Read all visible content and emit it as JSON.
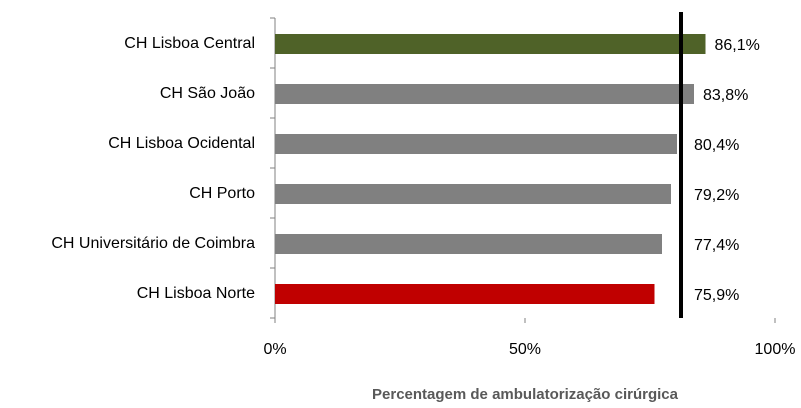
{
  "chart_data": {
    "type": "bar",
    "orientation": "horizontal",
    "x_label": "Percentagem de ambulatorização cirúrgica",
    "categories": [
      "CH Lisboa Central",
      "CH São João",
      "CH Lisboa Ocidental",
      "CH Porto",
      "CH Universitário de Coimbra",
      "CH Lisboa Norte"
    ],
    "values": [
      86.1,
      83.8,
      80.4,
      79.2,
      77.4,
      75.9
    ],
    "value_labels": [
      "86,1%",
      "83,8%",
      "80,4%",
      "79,2%",
      "77,4%",
      "75,9%"
    ],
    "colors": [
      "#4f6228",
      "#808080",
      "#808080",
      "#808080",
      "#808080",
      "#c00000"
    ],
    "reference_line": 81.2,
    "xlim": [
      0,
      100
    ],
    "xticks": [
      {
        "value": 0,
        "label": "0%"
      },
      {
        "value": 50,
        "label": "50%"
      },
      {
        "value": 100,
        "label": "100%"
      }
    ],
    "grid": false
  }
}
